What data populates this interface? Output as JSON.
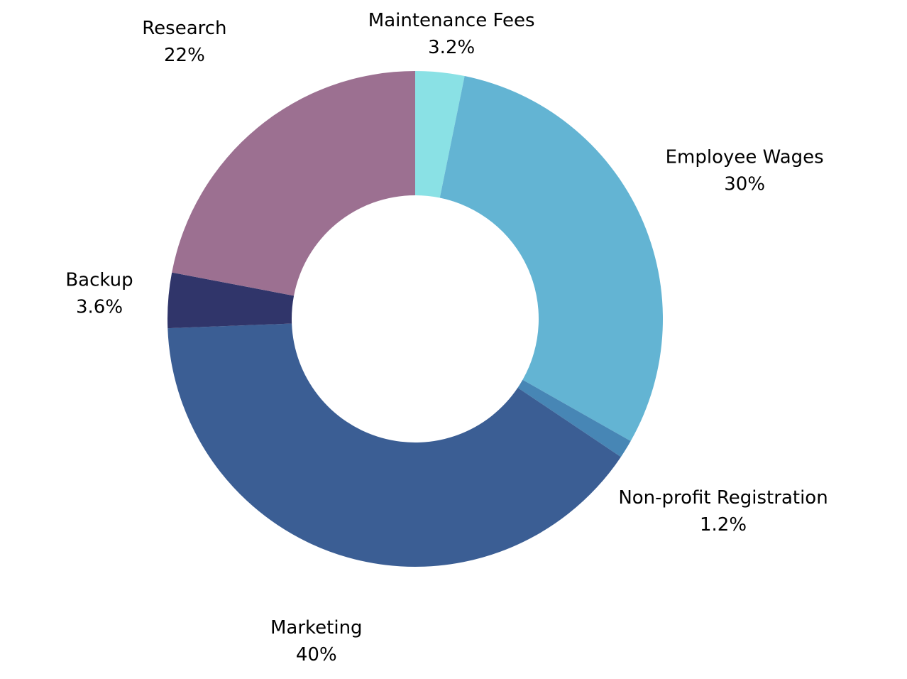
{
  "chart_data": {
    "type": "pie",
    "donut": true,
    "title": "",
    "start_angle_deg": 0,
    "direction": "clockwise",
    "slices": [
      {
        "label": "Maintenance Fees",
        "value": 3.2,
        "display": "3.2%",
        "color": "#8ae1e5"
      },
      {
        "label": "Employee Wages",
        "value": 30,
        "display": "30%",
        "color": "#63b4d3"
      },
      {
        "label": "Non-profit Registration",
        "value": 1.2,
        "display": "1.2%",
        "color": "#4786b5"
      },
      {
        "label": "Marketing",
        "value": 40,
        "display": "40%",
        "color": "#3b5e94"
      },
      {
        "label": "Backup",
        "value": 3.6,
        "display": "3.6%",
        "color": "#30356a"
      },
      {
        "label": "Research",
        "value": 22,
        "display": "22%",
        "color": "#9c7091"
      }
    ]
  }
}
